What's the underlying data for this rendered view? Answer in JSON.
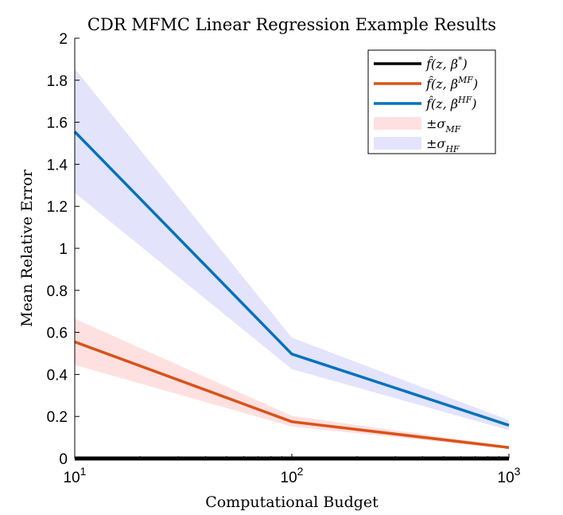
{
  "chart_data": {
    "type": "line",
    "title": "CDR MFMC Linear Regression Example Results",
    "xlabel": "Computational Budget",
    "ylabel": "Mean Relative Error",
    "xscale": "log",
    "xlim": [
      10,
      1000
    ],
    "ylim": [
      0,
      2
    ],
    "x": [
      10,
      100,
      1000
    ],
    "x_ticks": [
      {
        "value": 10,
        "base": "10",
        "exp": "1"
      },
      {
        "value": 100,
        "base": "10",
        "exp": "2"
      },
      {
        "value": 1000,
        "base": "10",
        "exp": "3"
      }
    ],
    "y_ticks": [
      0,
      0.2,
      0.4,
      0.6,
      0.8,
      1,
      1.2,
      1.4,
      1.6,
      1.8,
      2
    ],
    "y_tick_labels": [
      "0",
      "0.2",
      "0.4",
      "0.6",
      "0.8",
      "1",
      "1.2",
      "1.4",
      "1.6",
      "1.8",
      "2"
    ],
    "grid": false,
    "legend_position": "top-right",
    "series": [
      {
        "name": "f̂(z, β*)",
        "legend": {
          "base": "f̂(z, β",
          "sup": "*",
          "close": ")"
        },
        "color": "#000000",
        "values": [
          0,
          0,
          0
        ]
      },
      {
        "name": "f̂(z, βMF)",
        "legend": {
          "base": "f̂(z, β",
          "sup": "MF",
          "close": ")"
        },
        "color": "#d95319",
        "values": [
          0.555,
          0.175,
          0.052
        ]
      },
      {
        "name": "f̂(z, βHF)",
        "legend": {
          "base": "f̂(z, β",
          "sup": "HF",
          "close": ")"
        },
        "color": "#0072bd",
        "values": [
          1.555,
          0.497,
          0.158
        ]
      }
    ],
    "bands": [
      {
        "name": "±σMF",
        "legend": {
          "base": "±σ",
          "sub": "MF"
        },
        "color": "#ffe0e0",
        "lower": [
          0.445,
          0.152,
          0.046
        ],
        "upper": [
          0.665,
          0.203,
          0.058
        ]
      },
      {
        "name": "±σHF",
        "legend": {
          "base": "±σ",
          "sub": "HF"
        },
        "color": "#e3e3fc",
        "lower": [
          1.265,
          0.425,
          0.135
        ],
        "upper": [
          1.855,
          0.575,
          0.182
        ]
      }
    ]
  }
}
